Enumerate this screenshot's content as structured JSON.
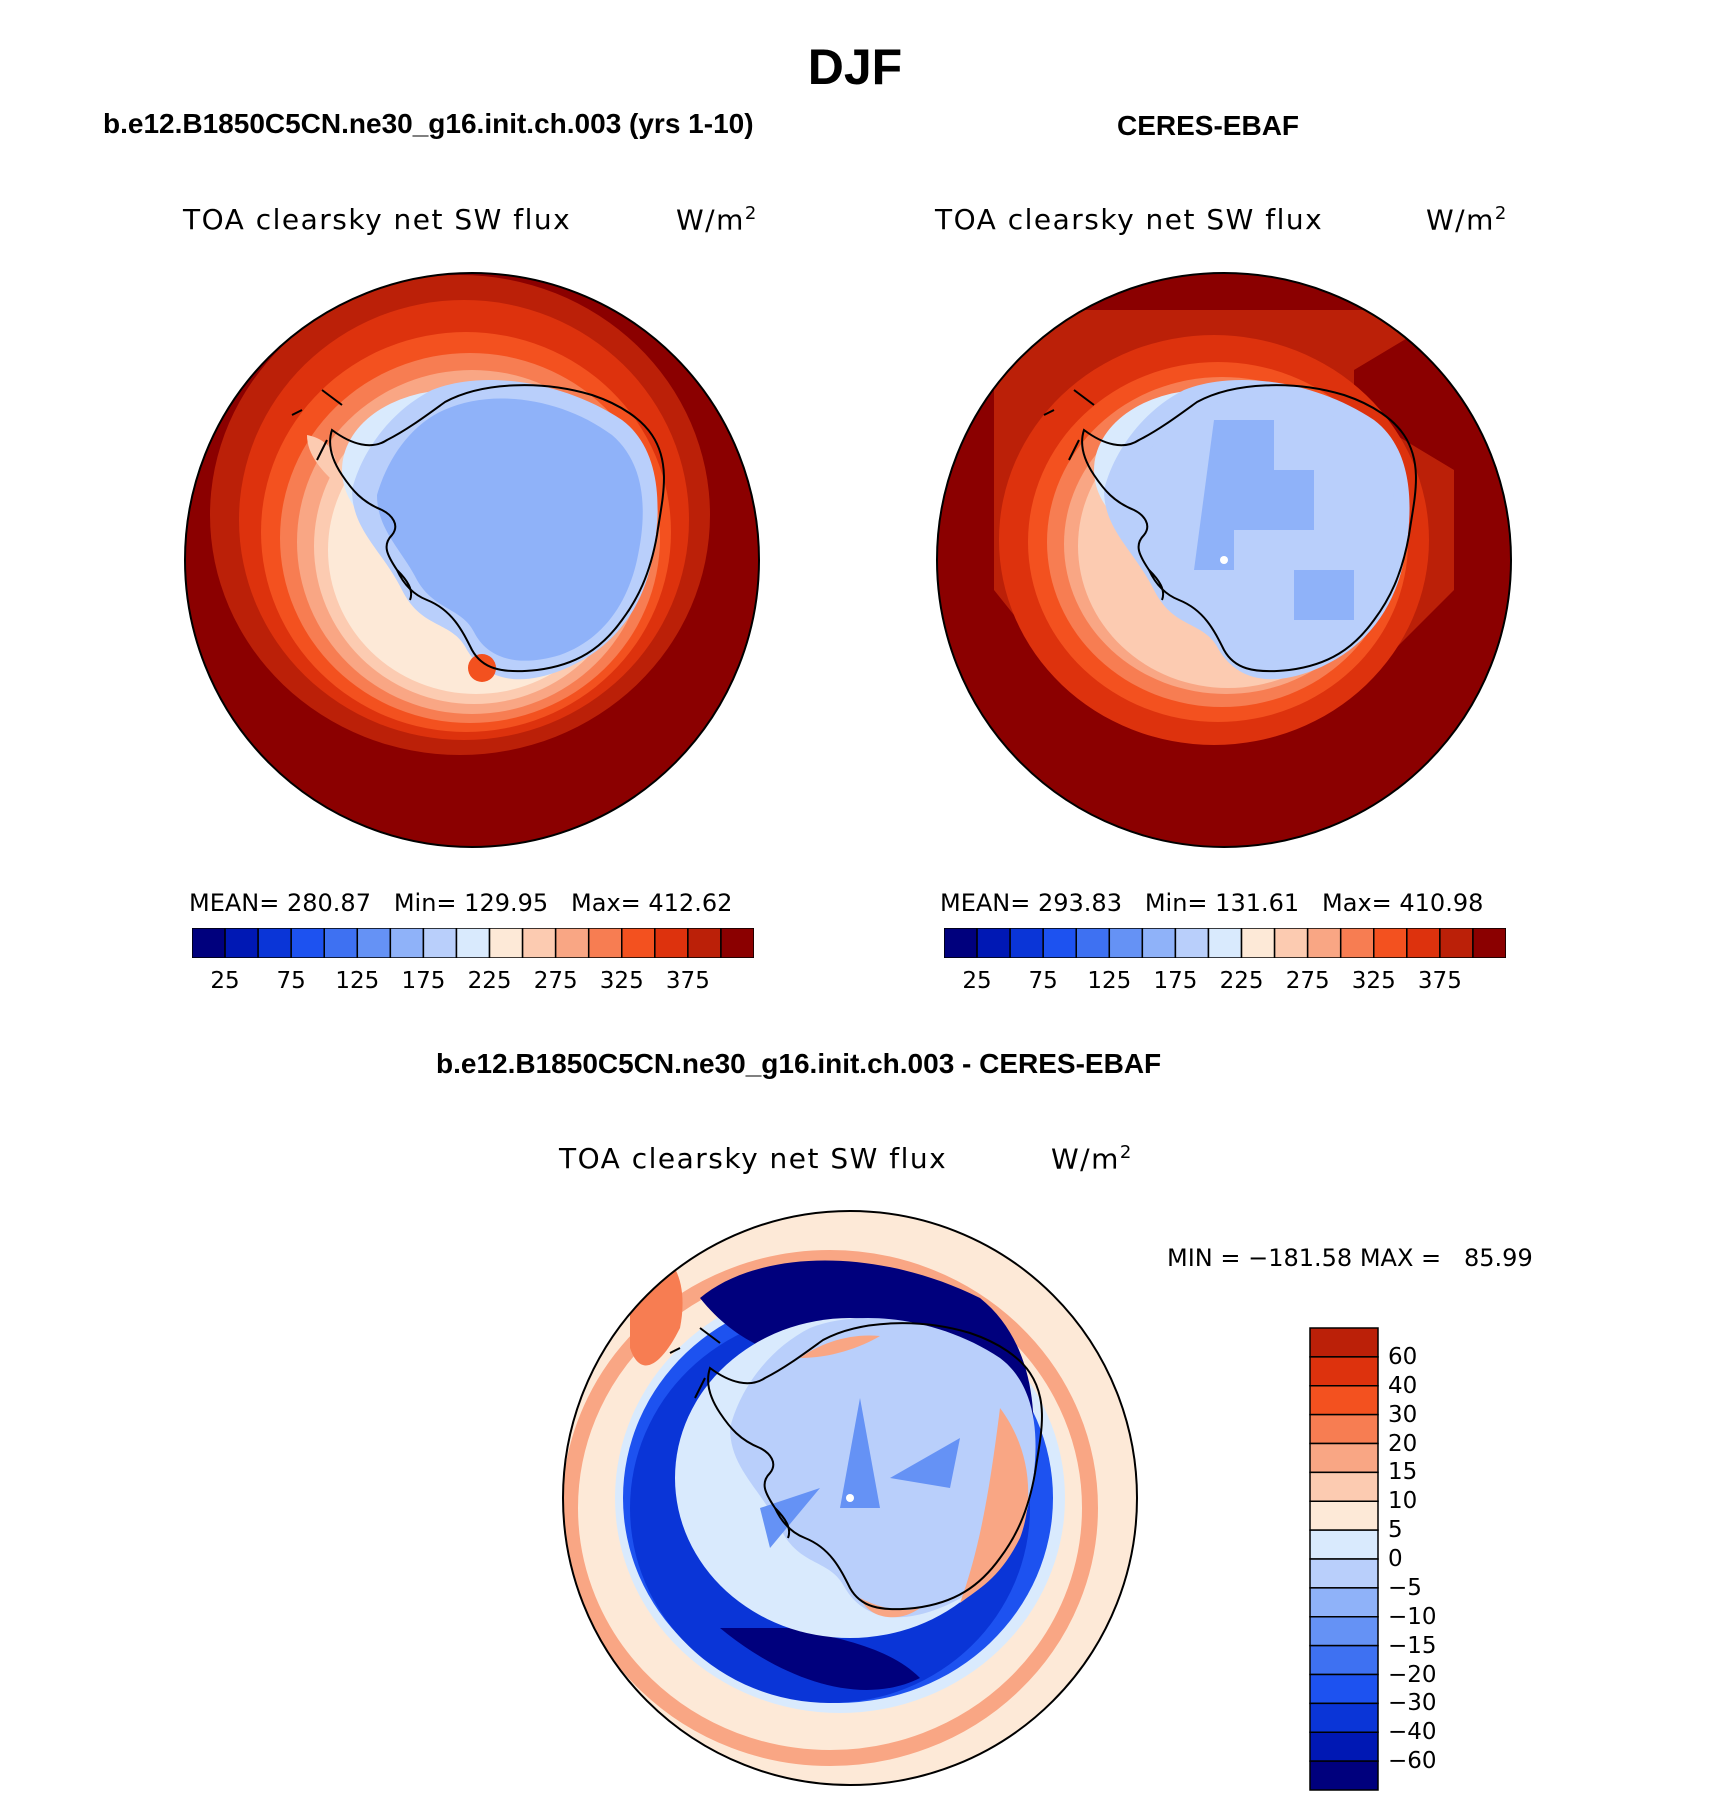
{
  "title": "DJF",
  "panels": [
    {
      "case": "b.e12.B1850C5CN.ne30_g16.init.ch.003 (yrs 1-10)",
      "variable": "TOA clearsky net SW flux",
      "units": "W/m",
      "units_sup": "2",
      "stats": "MEAN= 280.87   Min= 129.95   Max= 412.62"
    },
    {
      "case": "CERES-EBAF",
      "variable": "TOA clearsky net SW flux",
      "units": "W/m",
      "units_sup": "2",
      "stats": "MEAN= 293.83   Min= 131.61   Max= 410.98"
    },
    {
      "case": "b.e12.B1850C5CN.ne30_g16.init.ch.003 - CERES-EBAF",
      "variable": "TOA clearsky net SW flux",
      "units": "W/m",
      "units_sup": "2",
      "stats": "MIN = −181.58 MAX =   85.99"
    }
  ],
  "abs_colorbar": {
    "colors": [
      "#00007d",
      "#0018b4",
      "#0a35d7",
      "#1d52f0",
      "#3e71f2",
      "#6592f5",
      "#8fb2f9",
      "#b9cffb",
      "#d9eafd",
      "#fde9d7",
      "#fccbb1",
      "#f9a684",
      "#f77d52",
      "#f3511f",
      "#dd320d",
      "#bb2008",
      "#8b0000"
    ],
    "labels": [
      "25",
      "75",
      "125",
      "175",
      "225",
      "275",
      "325",
      "375"
    ]
  },
  "diff_colorbar": {
    "colors": [
      "#00007d",
      "#0018b4",
      "#0a35d7",
      "#1d52f0",
      "#3e71f2",
      "#6592f5",
      "#8fb2f9",
      "#b9cffb",
      "#d9eafd",
      "#fde9d7",
      "#fccbb1",
      "#f9a684",
      "#f77d52",
      "#f3511f",
      "#dd320d",
      "#bb2008"
    ],
    "labels": [
      "60",
      "40",
      "30",
      "20",
      "15",
      "10",
      "5",
      "0",
      "−5",
      "−10",
      "−15",
      "−20",
      "−30",
      "−40",
      "−60"
    ]
  }
}
